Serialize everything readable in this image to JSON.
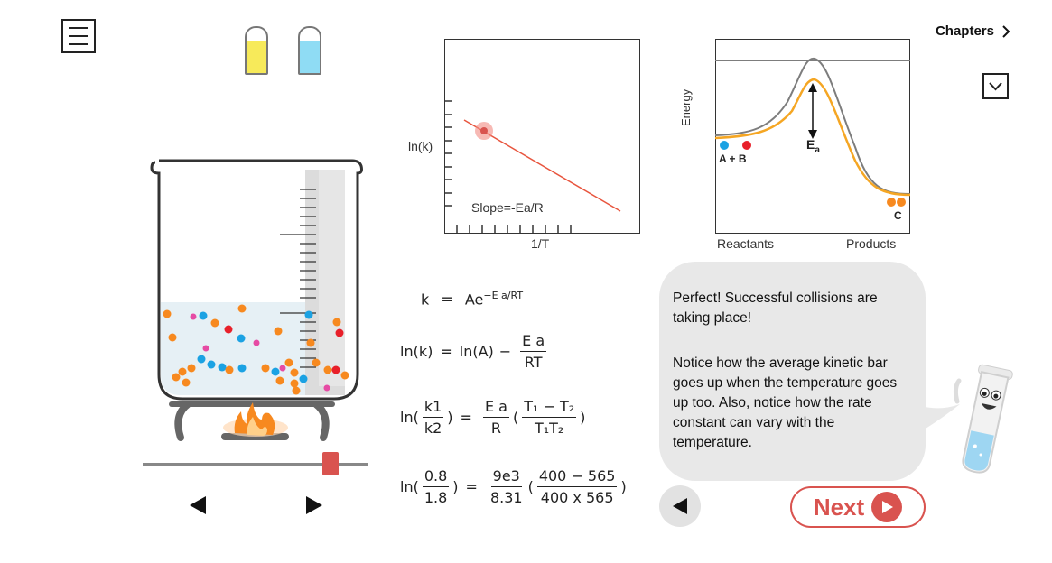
{
  "header": {
    "menu_icon": "hamburger-menu-icon",
    "chapters_label": "Chapters",
    "chapters_icon": "chevron-right-icon",
    "dropdown_icon": "chevron-down-icon"
  },
  "reagents": [
    {
      "name": "yellow-vial-icon",
      "color": "#f7ea5a"
    },
    {
      "name": "blue-vial-icon",
      "color": "#8fdcf4"
    }
  ],
  "arrhenius_plot": {
    "y_label": "ln(k)",
    "x_label": "1/T",
    "slope_label": "Slope=-Ea/R"
  },
  "energy_diagram": {
    "y_label": "Energy",
    "x_left_label": "Reactants",
    "x_right_label": "Products",
    "reactants_label": "A + B",
    "products_label": "C",
    "ea_label": "E",
    "ea_sub": "a"
  },
  "equations": {
    "eq1": {
      "lhs": "k",
      "eq": "=",
      "base": "Ae",
      "exp": "−E a/RT"
    },
    "eq2": {
      "lhs": "ln(k)",
      "eq": "=",
      "mid": "ln(A)",
      "minus": "−",
      "num": "E a",
      "den": "RT"
    },
    "eq3": {
      "open": "ln(",
      "num1": "k1",
      "den1": "k2",
      "close": ")",
      "eq": "=",
      "num2": "E a",
      "den2": "R",
      "paren_open": "(",
      "num3": "T₁ − T₂",
      "den3": "T₁T₂",
      "paren_close": ")"
    },
    "eq4": {
      "open": "ln(",
      "num1": "0.8",
      "den1": "1.8",
      "close": ")",
      "eq": "=",
      "num2": "9e3",
      "den2": "8.31",
      "paren_open": "(",
      "num3": "400 − 565",
      "den3": "400 x 565",
      "paren_close": ")"
    }
  },
  "message": {
    "paragraph1": "Perfect! Successful collisions are taking place!",
    "paragraph2": "Notice how the average kinetic bar goes up when the temperature goes up too. Also, notice how the rate constant can vary with the temperature."
  },
  "controls": {
    "prev_icon": "triangle-left-icon",
    "next_icon": "triangle-right-icon",
    "slider_value": 0.83,
    "back_icon": "triangle-left-icon",
    "next_label": "Next"
  },
  "colors": {
    "accent": "#d9534f",
    "orange_particle": "#f7891f",
    "blue_particle": "#1ba2e3",
    "red_particle": "#e8202a",
    "pink_particle": "#e64ba4",
    "liquid": "#e6f0f5",
    "energy_orange": "#f5a623",
    "energy_gray": "#7d7d7d"
  }
}
